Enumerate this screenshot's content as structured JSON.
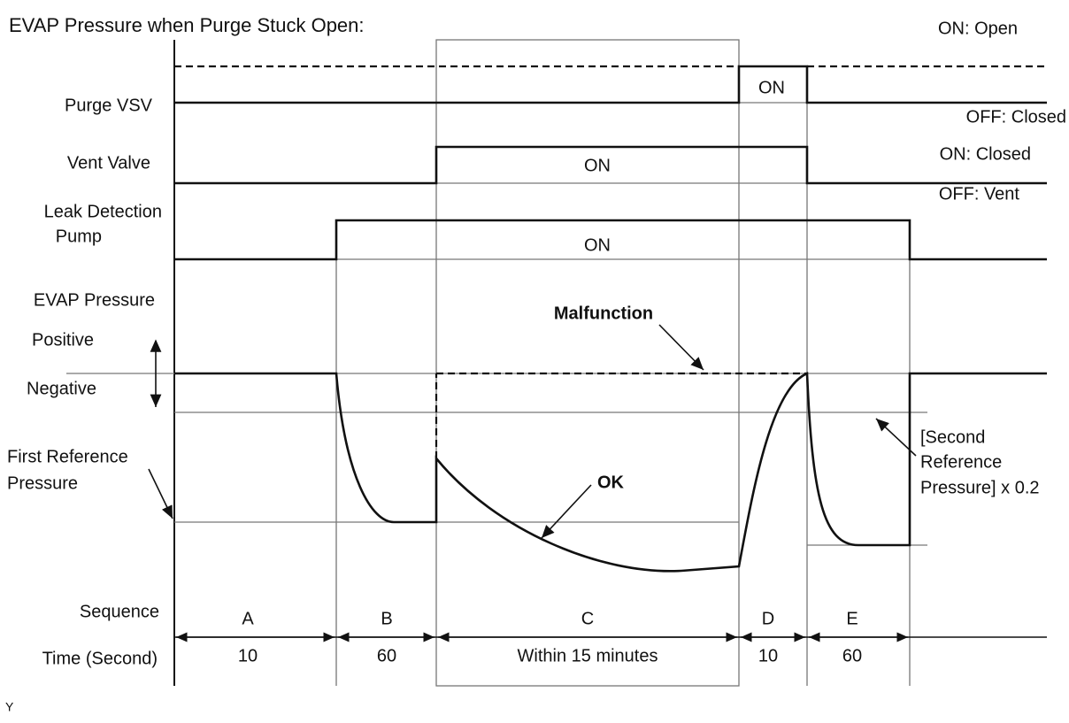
{
  "title": "EVAP Pressure when Purge Stuck Open:",
  "rows": [
    {
      "label": [
        "Purge VSV"
      ],
      "states": [
        "ON: Open",
        "OFF: Closed"
      ],
      "on_label": "ON"
    },
    {
      "label": [
        "Vent Valve"
      ],
      "states": [
        "ON: Closed",
        "OFF: Vent"
      ],
      "on_label": "ON"
    },
    {
      "label": [
        "Leak Detection",
        "Pump"
      ],
      "on_label": "ON"
    },
    {
      "label": [
        "EVAP Pressure"
      ],
      "directions": [
        "Positive",
        "Negative"
      ]
    }
  ],
  "annotations": {
    "malfunction": "Malfunction",
    "ok": "OK",
    "first_reference": [
      "First Reference",
      "Pressure"
    ],
    "second_reference": [
      "[Second",
      "Reference",
      "Pressure] x 0.2"
    ]
  },
  "sequence": {
    "label": "Sequence",
    "time_label": "Time (Second)",
    "phases": [
      {
        "letter": "A",
        "time": "10"
      },
      {
        "letter": "B",
        "time": "60"
      },
      {
        "letter": "C",
        "time": "Within 15 minutes"
      },
      {
        "letter": "D",
        "time": "10"
      },
      {
        "letter": "E",
        "time": "60"
      }
    ]
  },
  "footnote": "Y"
}
